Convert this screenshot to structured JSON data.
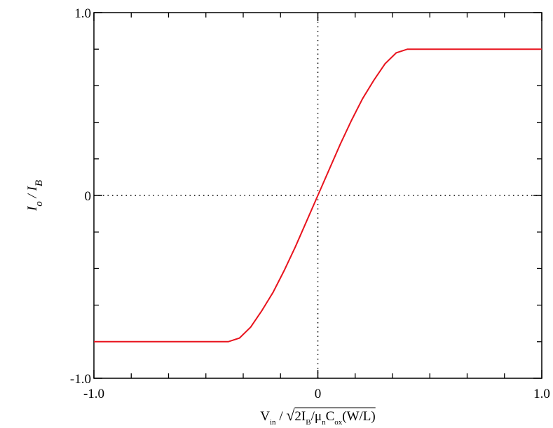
{
  "chart_data": {
    "type": "line",
    "xlabel": [
      {
        "text": "V"
      },
      {
        "text": "in",
        "sub": true
      },
      {
        "text": " / "
      },
      {
        "text": "√",
        "root": true
      },
      {
        "text": "2I"
      },
      {
        "text": "B",
        "sub": true
      },
      {
        "text": "/μ"
      },
      {
        "text": "n",
        "sub": true
      },
      {
        "text": "C"
      },
      {
        "text": "ox",
        "sub": true
      },
      {
        "text": "(W/L)"
      }
    ],
    "ylabel": [
      {
        "text": "I"
      },
      {
        "text": "o",
        "sub": true
      },
      {
        "text": " / I"
      },
      {
        "text": "B",
        "sub": true
      }
    ],
    "x": [
      -1,
      -0.4,
      -0.35,
      -0.3,
      -0.25,
      -0.2,
      -0.15,
      -0.1,
      -0.05,
      0,
      0.05,
      0.1,
      0.15,
      0.2,
      0.25,
      0.3,
      0.35,
      0.4,
      1
    ],
    "values": [
      -0.8,
      -0.8,
      -0.78,
      -0.72,
      -0.63,
      -0.53,
      -0.41,
      -0.28,
      -0.14,
      0,
      0.14,
      0.28,
      0.41,
      0.53,
      0.63,
      0.72,
      0.78,
      0.8,
      0.8
    ],
    "color": "#e8141e",
    "xlim": [
      -1,
      1
    ],
    "ylim": [
      -1,
      1
    ],
    "xticks": [
      {
        "value": -1,
        "label": "-1.0"
      },
      0,
      {
        "value": 1,
        "label": "1.0"
      }
    ],
    "yticks": [
      {
        "value": -1,
        "label": "-1.0"
      },
      0,
      {
        "value": 1,
        "label": "1.0"
      }
    ],
    "xminor": [
      -0.8333,
      -0.6667,
      -0.5,
      -0.3333,
      -0.1667,
      0.1667,
      0.3333,
      0.5,
      0.6667,
      0.8333
    ],
    "yminor": [
      -0.8,
      -0.6,
      -0.4,
      -0.2,
      0.2,
      0.4,
      0.6,
      0.8
    ],
    "zero_lines": true
  }
}
